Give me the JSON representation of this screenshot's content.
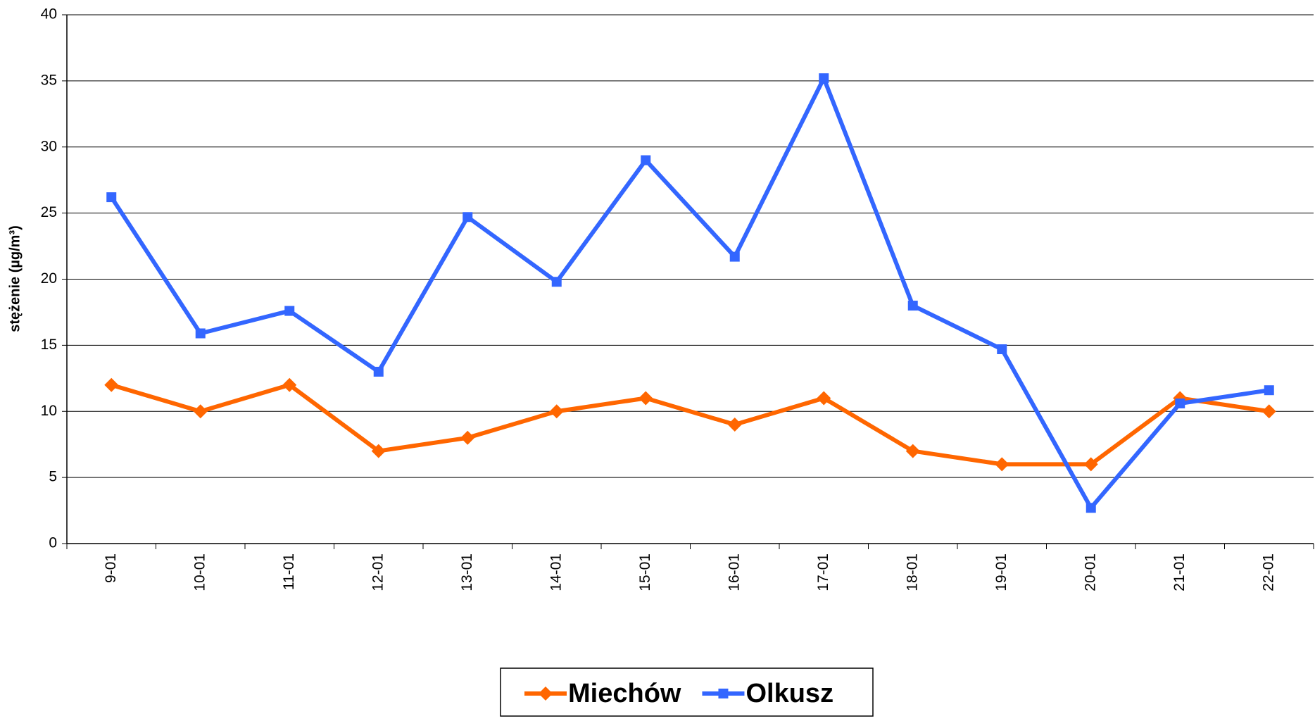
{
  "chart_data": {
    "type": "line",
    "y_label": "stężenie (µg/m³)",
    "categories": [
      "9-01",
      "10-01",
      "11-01",
      "12-01",
      "13-01",
      "14-01",
      "15-01",
      "16-01",
      "17-01",
      "18-01",
      "19-01",
      "20-01",
      "21-01",
      "22-01"
    ],
    "series": [
      {
        "name": "Miechów",
        "color": "#ff6600",
        "marker": "diamond",
        "values": [
          12,
          10,
          12,
          7,
          8,
          10,
          11,
          9,
          11,
          7,
          6,
          6,
          11,
          10
        ]
      },
      {
        "name": "Olkusz",
        "color": "#3366ff",
        "marker": "square",
        "values": [
          26.2,
          15.9,
          17.6,
          13.0,
          24.7,
          19.8,
          29.0,
          21.7,
          35.2,
          18.0,
          14.7,
          2.7,
          10.6,
          11.6
        ]
      }
    ],
    "ylim": [
      0,
      40
    ],
    "yticks": [
      0,
      5,
      10,
      15,
      20,
      25,
      30,
      35,
      40
    ],
    "grid": true,
    "legend": "bottom"
  }
}
